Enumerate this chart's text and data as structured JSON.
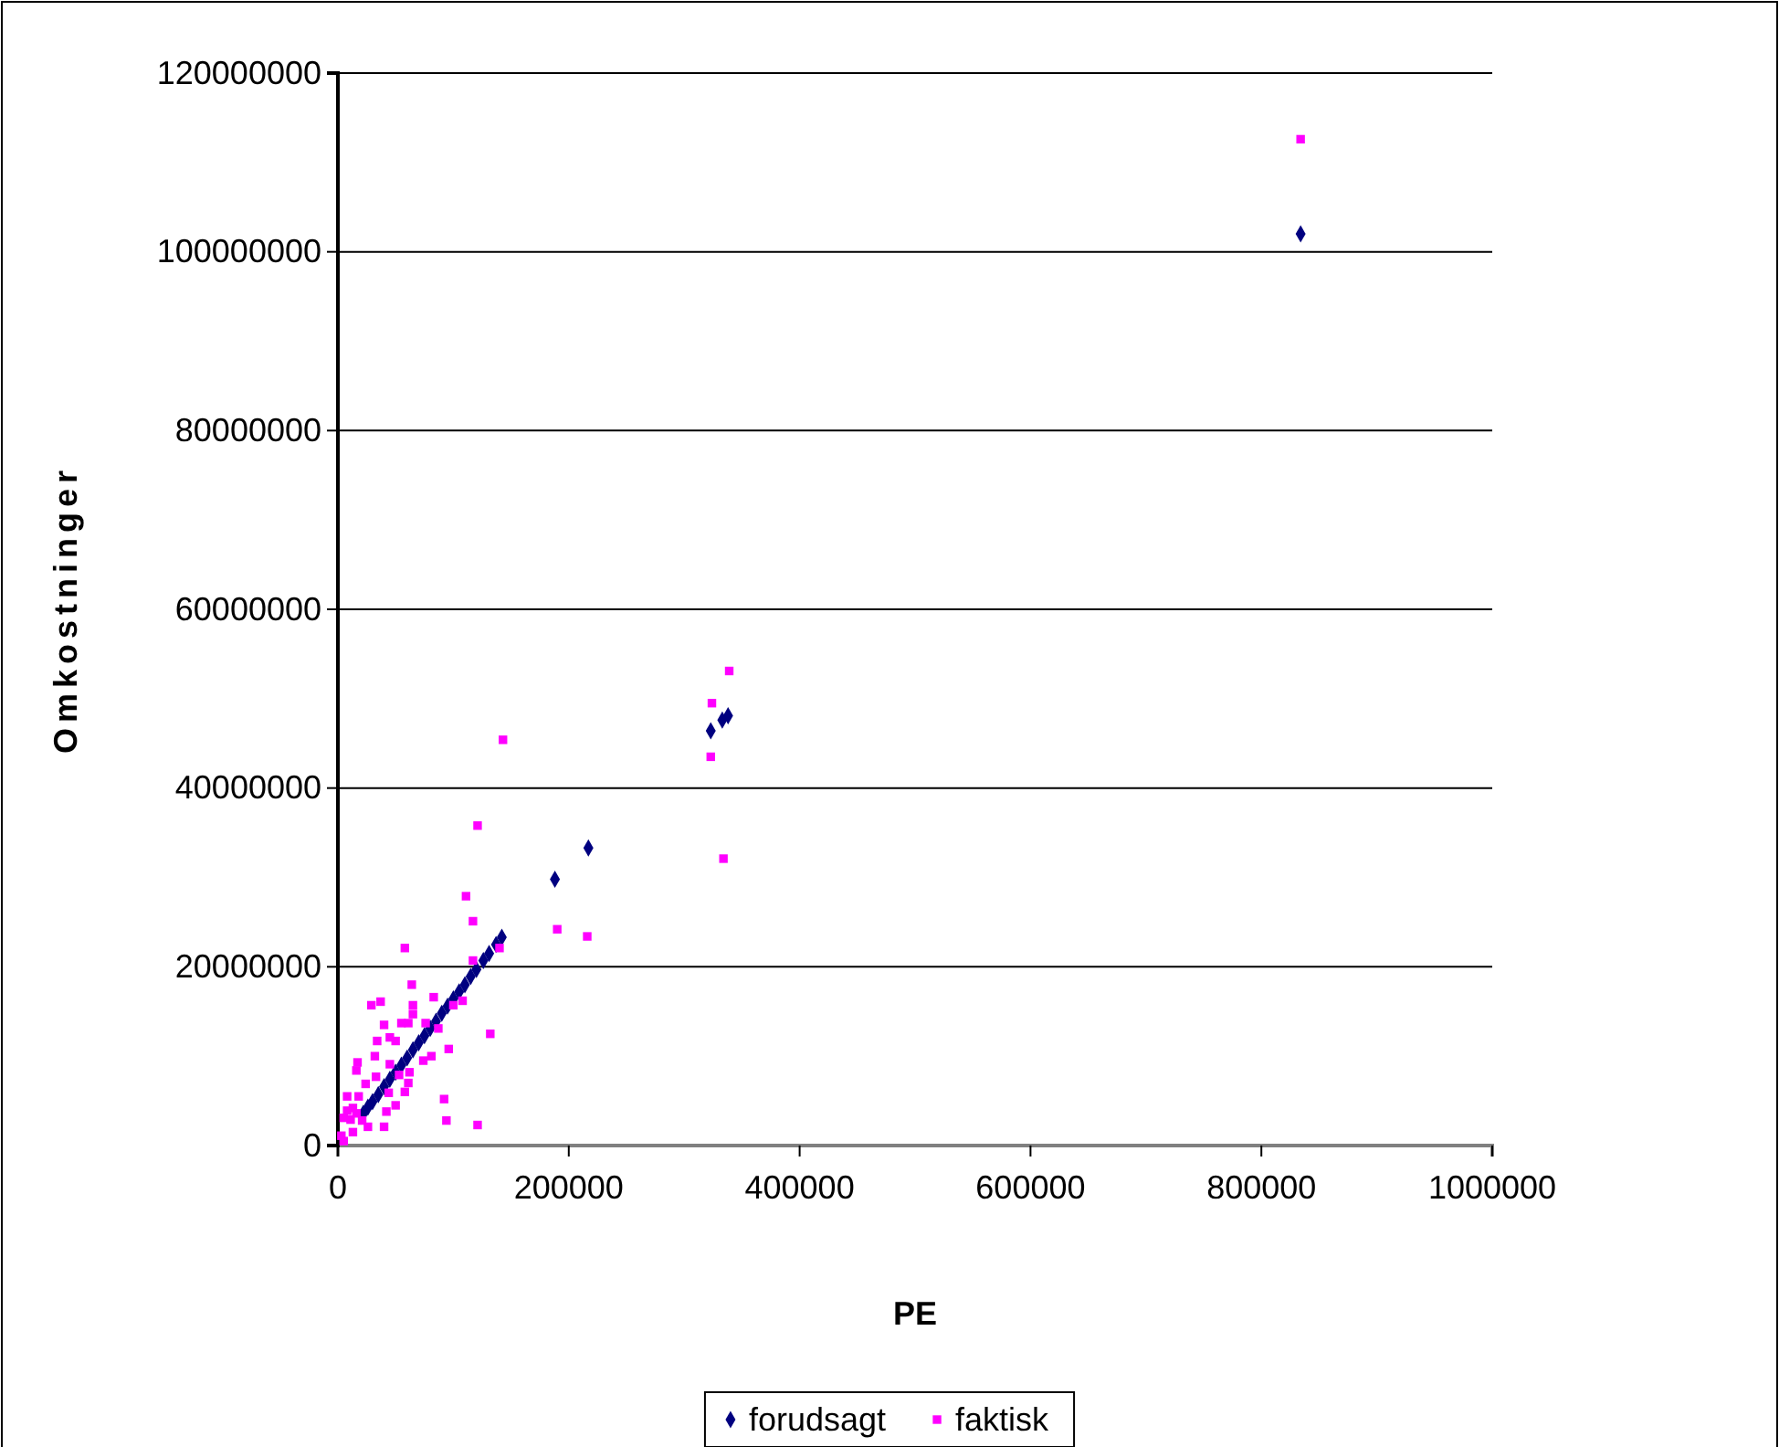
{
  "chart_data": {
    "type": "scatter",
    "xlabel": "PE",
    "ylabel": "Omkostninger",
    "xlim": [
      0,
      1000000
    ],
    "xticks": [
      0,
      200000,
      400000,
      600000,
      800000,
      1000000
    ],
    "ylim": [
      0,
      120000000
    ],
    "yticks": [
      0,
      20000000,
      40000000,
      60000000,
      80000000,
      100000000,
      120000000
    ],
    "grid": "y",
    "legend": "bottom",
    "series": [
      {
        "name": "forudsagt",
        "color": "#000080",
        "marker": "diamond",
        "x": [
          22000,
          26000,
          30000,
          35000,
          40000,
          45000,
          50000,
          55000,
          60000,
          65000,
          70000,
          75000,
          80000,
          85000,
          90000,
          95000,
          100000,
          105000,
          110000,
          115000,
          120000,
          126000,
          131000,
          137000,
          142000,
          188000,
          217000,
          323000,
          333000,
          338000,
          834000
        ],
        "values": [
          3600000,
          4300000,
          4900000,
          5700000,
          6600000,
          7400000,
          8200000,
          9000000,
          9800000,
          10700000,
          11500000,
          12300000,
          13100000,
          13900000,
          14800000,
          15600000,
          16400000,
          17200000,
          18000000,
          18900000,
          19700000,
          20700000,
          21500000,
          22500000,
          23300000,
          29800000,
          33300000,
          46400000,
          47600000,
          48100000,
          102000000
        ]
      },
      {
        "name": "faktisk",
        "color": "#ff00ff",
        "marker": "square",
        "x": [
          111000,
          117000,
          58000,
          190000,
          216000,
          140000,
          117000,
          64000,
          29000,
          37000,
          65000,
          83000,
          100000,
          108000,
          65000,
          40000,
          55000,
          61000,
          76000,
          87000,
          132000,
          45000,
          34000,
          50000,
          96000,
          81000,
          74000,
          32000,
          17000,
          16000,
          45000,
          62000,
          33000,
          53000,
          61000,
          58000,
          44000,
          24000,
          18000,
          50000,
          42000,
          92000,
          94000,
          121000,
          40000,
          26000,
          8000,
          13000,
          5000,
          11000,
          3000,
          5000,
          13000,
          21000,
          8000,
          16000,
          339000,
          324000,
          323000,
          143000,
          334000,
          121000,
          834000
        ],
        "values": [
          27900000,
          25100000,
          22100000,
          24200000,
          23400000,
          22100000,
          20700000,
          18000000,
          15700000,
          16100000,
          15700000,
          16600000,
          15700000,
          16200000,
          14700000,
          13500000,
          13700000,
          13700000,
          13700000,
          13100000,
          12500000,
          12100000,
          11700000,
          11700000,
          10800000,
          10000000,
          9500000,
          10000000,
          9300000,
          8400000,
          9100000,
          8200000,
          7700000,
          7900000,
          7000000,
          6000000,
          5900000,
          6900000,
          5500000,
          4500000,
          3800000,
          5200000,
          2800000,
          2300000,
          2100000,
          2100000,
          5500000,
          4200000,
          3100000,
          2900000,
          1100000,
          500000,
          1500000,
          2800000,
          3900000,
          3600000,
          53100000,
          49500000,
          43500000,
          45400000,
          32100000,
          35800000,
          112600000
        ]
      }
    ]
  }
}
